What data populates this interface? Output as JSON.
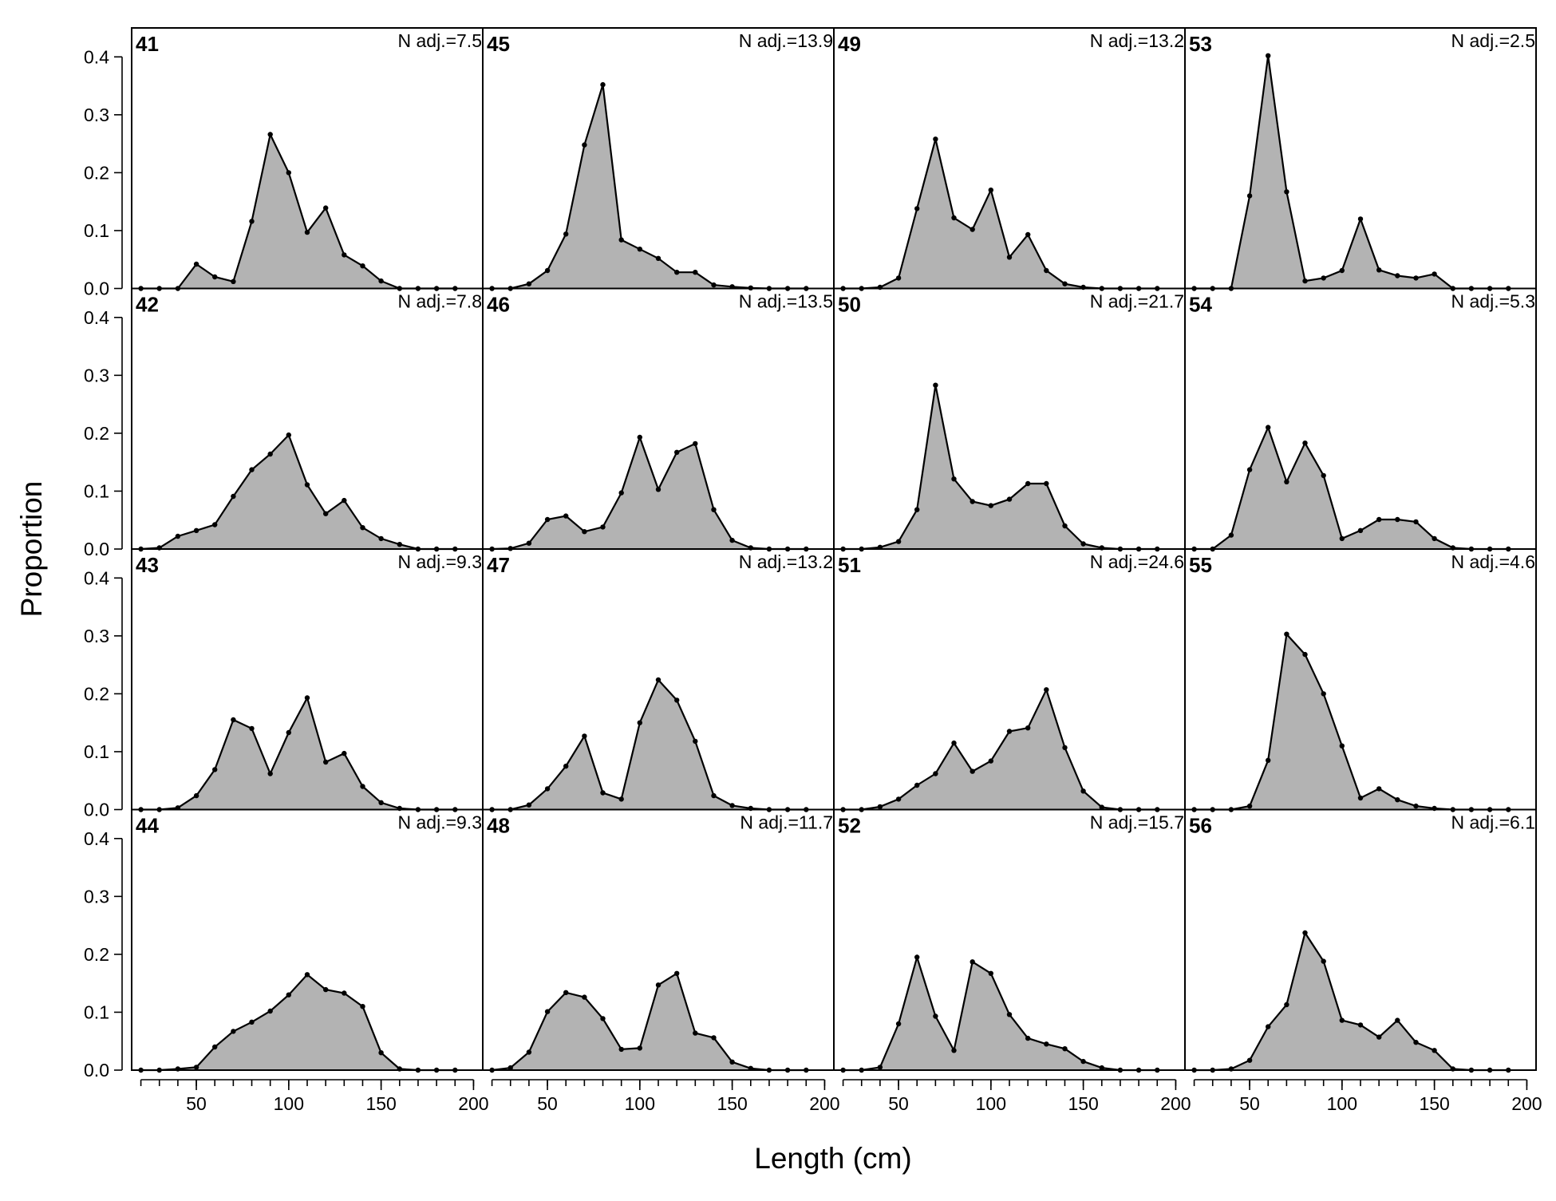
{
  "chart_data": {
    "type": "area",
    "xlabel": "Length (cm)",
    "ylabel": "Proportion",
    "xlim": [
      15,
      205
    ],
    "ylim": [
      0,
      0.45
    ],
    "x_ticks": [
      "50",
      "100",
      "150",
      "200"
    ],
    "y_ticks": [
      "0.0",
      "0.1",
      "0.2",
      "0.3",
      "0.4"
    ],
    "x": [
      20,
      30,
      40,
      50,
      60,
      70,
      80,
      90,
      100,
      110,
      120,
      130,
      140,
      150,
      160,
      170,
      180,
      190
    ],
    "layout": "4 rows x 4 columns, panels ordered down columns",
    "panels": [
      {
        "id": "41",
        "nadj": "N adj.=7.5",
        "values": [
          0,
          0,
          0,
          0.042,
          0.02,
          0.012,
          0.116,
          0.266,
          0.2,
          0.097,
          0.139,
          0.058,
          0.039,
          0.013,
          0,
          0,
          0,
          0
        ]
      },
      {
        "id": "42",
        "nadj": "N adj.=7.8",
        "values": [
          0,
          0.002,
          0.022,
          0.032,
          0.042,
          0.091,
          0.137,
          0.164,
          0.197,
          0.111,
          0.061,
          0.084,
          0.037,
          0.018,
          0.008,
          0,
          0,
          0
        ]
      },
      {
        "id": "43",
        "nadj": "N adj.=9.3",
        "values": [
          0,
          0,
          0.003,
          0.024,
          0.069,
          0.155,
          0.14,
          0.062,
          0.133,
          0.193,
          0.082,
          0.097,
          0.04,
          0.012,
          0.002,
          0,
          0,
          0
        ]
      },
      {
        "id": "44",
        "nadj": "N adj.=9.3",
        "values": [
          0,
          0,
          0.002,
          0.005,
          0.04,
          0.067,
          0.083,
          0.102,
          0.13,
          0.165,
          0.139,
          0.133,
          0.11,
          0.03,
          0.002,
          0,
          0,
          0
        ]
      },
      {
        "id": "45",
        "nadj": "N adj.=13.9",
        "values": [
          0,
          0,
          0.008,
          0.031,
          0.094,
          0.248,
          0.352,
          0.084,
          0.068,
          0.052,
          0.028,
          0.028,
          0.006,
          0.003,
          0.001,
          0,
          0,
          0
        ]
      },
      {
        "id": "46",
        "nadj": "N adj.=13.5",
        "values": [
          0,
          0.001,
          0.01,
          0.051,
          0.057,
          0.03,
          0.038,
          0.097,
          0.193,
          0.103,
          0.167,
          0.182,
          0.068,
          0.015,
          0.002,
          0,
          0,
          0
        ]
      },
      {
        "id": "47",
        "nadj": "N adj.=13.2",
        "values": [
          0,
          0,
          0.008,
          0.036,
          0.075,
          0.127,
          0.029,
          0.018,
          0.15,
          0.224,
          0.189,
          0.118,
          0.024,
          0.007,
          0.002,
          0,
          0,
          0
        ]
      },
      {
        "id": "48",
        "nadj": "N adj.=11.7",
        "values": [
          0,
          0.004,
          0.031,
          0.101,
          0.134,
          0.126,
          0.089,
          0.036,
          0.038,
          0.147,
          0.167,
          0.064,
          0.056,
          0.014,
          0.003,
          0,
          0,
          0
        ]
      },
      {
        "id": "49",
        "nadj": "N adj.=13.2",
        "values": [
          0,
          0,
          0.002,
          0.018,
          0.138,
          0.258,
          0.122,
          0.102,
          0.17,
          0.054,
          0.093,
          0.031,
          0.008,
          0.002,
          0,
          0,
          0,
          0
        ]
      },
      {
        "id": "50",
        "nadj": "N adj.=21.7",
        "values": [
          0,
          0,
          0.003,
          0.013,
          0.068,
          0.283,
          0.121,
          0.082,
          0.075,
          0.086,
          0.113,
          0.113,
          0.04,
          0.009,
          0.002,
          0,
          0,
          0
        ]
      },
      {
        "id": "51",
        "nadj": "N adj.=24.6",
        "values": [
          0,
          0,
          0.005,
          0.018,
          0.042,
          0.062,
          0.115,
          0.066,
          0.084,
          0.135,
          0.141,
          0.207,
          0.107,
          0.032,
          0.004,
          0,
          0,
          0
        ]
      },
      {
        "id": "52",
        "nadj": "N adj.=15.7",
        "values": [
          0,
          0,
          0.005,
          0.08,
          0.195,
          0.093,
          0.034,
          0.187,
          0.167,
          0.096,
          0.055,
          0.045,
          0.037,
          0.015,
          0.004,
          0,
          0,
          0
        ]
      },
      {
        "id": "53",
        "nadj": "N adj.=2.5",
        "values": [
          0,
          0,
          0,
          0.16,
          0.402,
          0.167,
          0.013,
          0.018,
          0.031,
          0.12,
          0.032,
          0.022,
          0.018,
          0.025,
          0,
          0,
          0,
          0
        ]
      },
      {
        "id": "54",
        "nadj": "N adj.=5.3",
        "values": [
          0,
          0,
          0.024,
          0.137,
          0.21,
          0.116,
          0.183,
          0.127,
          0.018,
          0.032,
          0.051,
          0.051,
          0.047,
          0.018,
          0.002,
          0,
          0,
          0
        ]
      },
      {
        "id": "55",
        "nadj": "N adj.=4.6",
        "values": [
          0,
          0,
          0,
          0.006,
          0.085,
          0.303,
          0.268,
          0.2,
          0.11,
          0.02,
          0.036,
          0.017,
          0.006,
          0.002,
          0,
          0,
          0,
          0
        ]
      },
      {
        "id": "56",
        "nadj": "N adj.=6.1",
        "values": [
          0,
          0,
          0.002,
          0.017,
          0.075,
          0.113,
          0.237,
          0.188,
          0.086,
          0.078,
          0.057,
          0.086,
          0.048,
          0.034,
          0.002,
          0,
          0,
          0
        ]
      }
    ]
  }
}
